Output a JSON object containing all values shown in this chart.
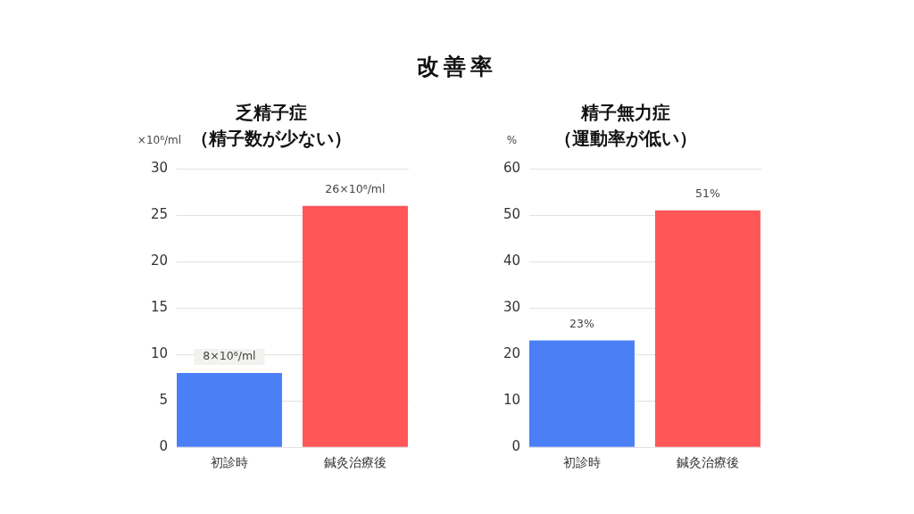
{
  "chart_data": [
    {
      "type": "bar",
      "title": "改善率",
      "subtitle": "乏精子症（精子数が少ない）",
      "ylabel": "×10⁶/ml",
      "categories": [
        "初診時",
        "鍼灸治療後"
      ],
      "values": [
        8,
        26
      ],
      "colors": [
        "#4a7ff6",
        "#ff5658"
      ],
      "value_labels": [
        "8×10⁶/ml",
        "26×10⁶/ml"
      ],
      "ylim": [
        0,
        30
      ],
      "yticks": [
        0,
        5,
        10,
        15,
        20,
        25,
        30
      ],
      "grid": "y"
    },
    {
      "type": "bar",
      "subtitle": "精子無力症（運動率が低い）",
      "ylabel": "%",
      "categories": [
        "初診時",
        "鍼灸治療後"
      ],
      "values": [
        23,
        51
      ],
      "colors": [
        "#4a7ff6",
        "#ff5658"
      ],
      "value_labels": [
        "23%",
        "51%"
      ],
      "ylim": [
        0,
        60
      ],
      "yticks": [
        0,
        10,
        20,
        30,
        40,
        50,
        60
      ],
      "grid": "y"
    }
  ]
}
